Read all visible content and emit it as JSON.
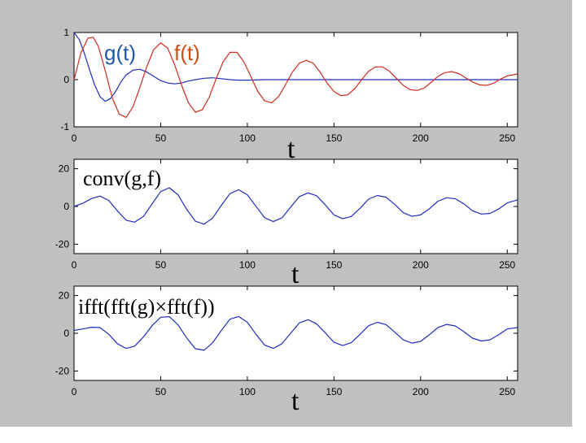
{
  "chart_data": [
    {
      "type": "line",
      "xlim": [
        0,
        256
      ],
      "ylim": [
        -1,
        1
      ],
      "xticks": [
        0,
        50,
        100,
        150,
        200,
        250
      ],
      "yticks": [
        -1,
        0,
        1
      ],
      "xlabel": "t",
      "annotations": [
        "g(t)",
        "f(t)"
      ],
      "series": [
        {
          "name": "g(t)",
          "color": "#1f2dbd",
          "x": [
            0,
            3,
            6,
            9,
            12,
            15,
            18,
            21,
            24,
            27,
            30,
            34,
            38,
            42,
            46,
            50,
            54,
            58,
            62,
            66,
            70,
            75,
            80,
            85,
            90,
            95,
            100,
            110,
            120,
            140,
            160,
            200,
            256
          ],
          "y": [
            1.0,
            0.85,
            0.55,
            0.2,
            -0.12,
            -0.36,
            -0.46,
            -0.4,
            -0.25,
            -0.05,
            0.1,
            0.2,
            0.22,
            0.16,
            0.07,
            -0.02,
            -0.07,
            -0.09,
            -0.07,
            -0.03,
            0.0,
            0.03,
            0.04,
            0.02,
            0.0,
            -0.01,
            -0.01,
            0.0,
            0.0,
            0.0,
            0.0,
            0.0,
            0.0
          ]
        },
        {
          "name": "f(t)",
          "color": "#d22a1e",
          "x": [
            0,
            4,
            8,
            11,
            14,
            18,
            22,
            26,
            30,
            34,
            38,
            42,
            46,
            50,
            54,
            58,
            62,
            66,
            70,
            74,
            78,
            82,
            86,
            90,
            94,
            98,
            102,
            106,
            110,
            114,
            118,
            122,
            126,
            130,
            134,
            138,
            142,
            146,
            150,
            154,
            158,
            162,
            166,
            170,
            174,
            178,
            182,
            186,
            190,
            194,
            198,
            202,
            206,
            210,
            214,
            218,
            222,
            226,
            230,
            234,
            238,
            242,
            246,
            250,
            256
          ],
          "y": [
            0.0,
            0.57,
            0.88,
            0.9,
            0.71,
            0.19,
            -0.38,
            -0.73,
            -0.8,
            -0.58,
            -0.16,
            0.28,
            0.64,
            0.78,
            0.67,
            0.32,
            -0.11,
            -0.49,
            -0.69,
            -0.64,
            -0.37,
            0.02,
            0.38,
            0.58,
            0.58,
            0.38,
            0.07,
            -0.25,
            -0.45,
            -0.49,
            -0.36,
            -0.11,
            0.16,
            0.35,
            0.41,
            0.35,
            0.16,
            -0.07,
            -0.25,
            -0.34,
            -0.32,
            -0.19,
            0.0,
            0.18,
            0.27,
            0.27,
            0.18,
            0.03,
            -0.12,
            -0.21,
            -0.23,
            -0.18,
            -0.06,
            0.07,
            0.15,
            0.17,
            0.13,
            0.04,
            -0.05,
            -0.11,
            -0.12,
            -0.08,
            0.01,
            0.08,
            0.12
          ]
        }
      ]
    },
    {
      "type": "line",
      "xlim": [
        0,
        256
      ],
      "ylim": [
        -25,
        25
      ],
      "xticks": [
        0,
        50,
        100,
        150,
        200,
        250
      ],
      "yticks": [
        -20,
        0,
        20
      ],
      "xlabel": "t",
      "annotations": [
        "conv(g,f)"
      ],
      "series": [
        {
          "color": "#1f2dbd",
          "x": [
            0,
            5,
            10,
            15,
            20,
            25,
            30,
            35,
            40,
            45,
            50,
            55,
            60,
            65,
            70,
            75,
            80,
            85,
            90,
            95,
            100,
            105,
            110,
            115,
            120,
            125,
            130,
            135,
            140,
            145,
            150,
            155,
            160,
            165,
            170,
            175,
            180,
            185,
            190,
            195,
            200,
            205,
            210,
            215,
            220,
            225,
            230,
            235,
            240,
            245,
            250,
            256
          ],
          "y": [
            0.0,
            1.7,
            4.2,
            5.5,
            3.2,
            -2.3,
            -7.3,
            -8.3,
            -5.3,
            1.3,
            7.9,
            9.9,
            6.2,
            -1.5,
            -7.8,
            -9.4,
            -6.1,
            0.6,
            6.8,
            8.9,
            6.2,
            0.1,
            -6.0,
            -8.0,
            -6.0,
            -0.4,
            5.2,
            7.2,
            5.7,
            0.8,
            -4.5,
            -6.5,
            -5.3,
            -1.0,
            3.9,
            5.8,
            4.9,
            1.2,
            -3.3,
            -5.2,
            -4.5,
            -1.3,
            2.8,
            4.6,
            4.1,
            1.4,
            -2.3,
            -4.0,
            -3.7,
            -1.4,
            1.9,
            3.5
          ]
        }
      ]
    },
    {
      "type": "line",
      "xlim": [
        0,
        256
      ],
      "ylim": [
        -25,
        25
      ],
      "xticks": [
        0,
        50,
        100,
        150,
        200,
        250
      ],
      "yticks": [
        -20,
        0,
        20
      ],
      "xlabel": "t",
      "annotations": [
        "ifft(fft(g)×fft(f))"
      ],
      "series": [
        {
          "color": "#1f2dbd",
          "x": [
            0,
            5,
            10,
            15,
            20,
            25,
            30,
            35,
            40,
            45,
            50,
            55,
            60,
            65,
            70,
            75,
            80,
            85,
            90,
            95,
            100,
            105,
            110,
            115,
            120,
            125,
            130,
            135,
            140,
            145,
            150,
            155,
            160,
            165,
            170,
            175,
            180,
            185,
            190,
            195,
            200,
            205,
            210,
            215,
            220,
            225,
            230,
            235,
            240,
            245,
            250,
            256
          ],
          "y": [
            1.5,
            2.3,
            3.2,
            3.0,
            -0.5,
            -5.5,
            -8.0,
            -6.8,
            -2.0,
            4.0,
            8.5,
            8.8,
            4.5,
            -2.5,
            -8.2,
            -9.0,
            -5.0,
            1.5,
            7.5,
            8.9,
            5.8,
            -0.5,
            -6.3,
            -8.0,
            -5.5,
            0.0,
            5.5,
            7.2,
            5.0,
            0.2,
            -4.8,
            -6.5,
            -5.0,
            -0.6,
            4.0,
            5.8,
            4.6,
            0.7,
            -3.5,
            -5.2,
            -4.3,
            -0.8,
            3.0,
            4.7,
            3.9,
            0.8,
            -2.6,
            -4.1,
            -3.5,
            -0.8,
            2.3,
            3.0
          ]
        }
      ]
    }
  ]
}
